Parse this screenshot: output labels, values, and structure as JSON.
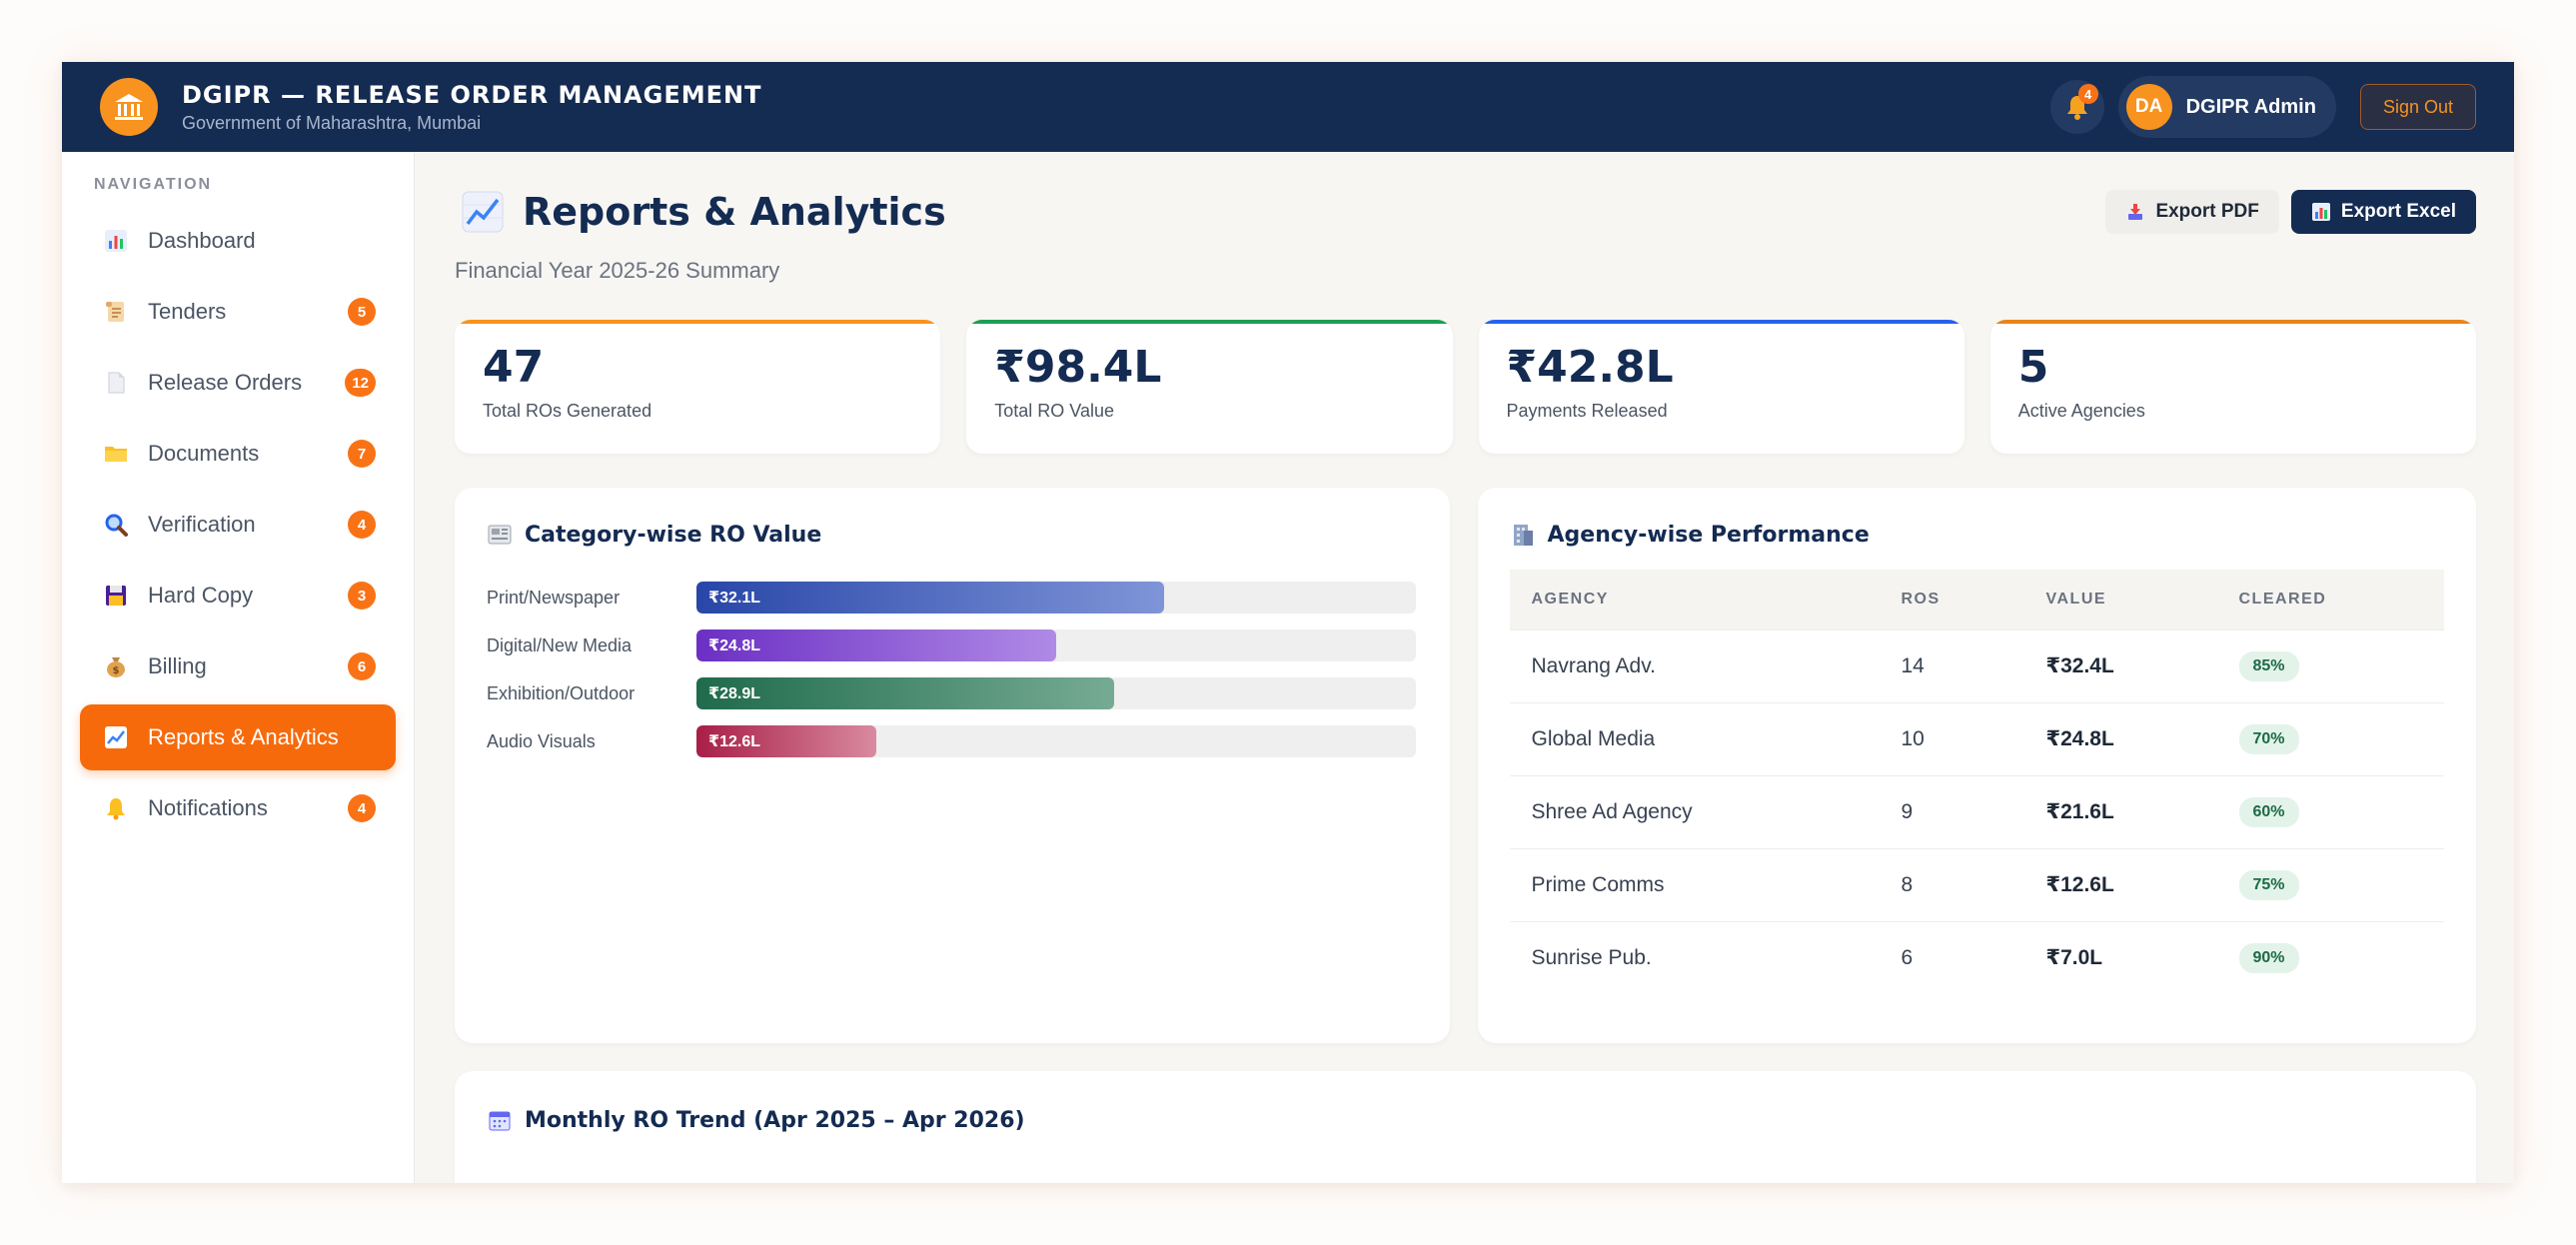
{
  "header": {
    "title": "DGIPR — RELEASE ORDER MANAGEMENT",
    "subtitle": "Government of Maharashtra, Mumbai",
    "notification_count": "4",
    "user_initials": "DA",
    "user_name": "DGIPR Admin",
    "signout_label": "Sign Out"
  },
  "sidebar": {
    "section_label": "NAVIGATION",
    "items": [
      {
        "label": "Dashboard",
        "icon": "bar-chart-icon",
        "badge": ""
      },
      {
        "label": "Tenders",
        "icon": "scroll-icon",
        "badge": "5"
      },
      {
        "label": "Release Orders",
        "icon": "document-icon",
        "badge": "12"
      },
      {
        "label": "Documents",
        "icon": "folder-icon",
        "badge": "7"
      },
      {
        "label": "Verification",
        "icon": "magnifier-icon",
        "badge": "4"
      },
      {
        "label": "Hard Copy",
        "icon": "floppy-icon",
        "badge": "3"
      },
      {
        "label": "Billing",
        "icon": "money-bag-icon",
        "badge": "6"
      },
      {
        "label": "Reports & Analytics",
        "icon": "chart-up-icon",
        "badge": "",
        "active": true
      },
      {
        "label": "Notifications",
        "icon": "bell-icon",
        "badge": "4"
      }
    ]
  },
  "page": {
    "title": "Reports & Analytics",
    "subtitle": "Financial Year 2025-26 Summary",
    "export_pdf": "Export PDF",
    "export_excel": "Export Excel"
  },
  "stats": [
    {
      "value": "47",
      "label": "Total ROs Generated",
      "accent": "#f97316"
    },
    {
      "value": "₹98.4L",
      "label": "Total RO Value",
      "accent": "#16a34a"
    },
    {
      "value": "₹42.8L",
      "label": "Payments Released",
      "accent": "#2563eb"
    },
    {
      "value": "5",
      "label": "Active Agencies",
      "accent": "#f97316"
    }
  ],
  "category_panel": {
    "title": "Category-wise RO Value",
    "rows": [
      {
        "name": "Print/Newspaper",
        "label": "₹32.1L",
        "fraction": 0.65
      },
      {
        "name": "Digital/New Media",
        "label": "₹24.8L",
        "fraction": 0.5
      },
      {
        "name": "Exhibition/Outdoor",
        "label": "₹28.9L",
        "fraction": 0.58
      },
      {
        "name": "Audio Visuals",
        "label": "₹12.6L",
        "fraction": 0.25
      }
    ]
  },
  "agency_panel": {
    "title": "Agency-wise Performance",
    "columns": [
      "AGENCY",
      "ROS",
      "VALUE",
      "CLEARED"
    ],
    "rows": [
      {
        "agency": "Navrang Adv.",
        "ros": "14",
        "value": "₹32.4L",
        "cleared": "85%"
      },
      {
        "agency": "Global Media",
        "ros": "10",
        "value": "₹24.8L",
        "cleared": "70%"
      },
      {
        "agency": "Shree Ad Agency",
        "ros": "9",
        "value": "₹21.6L",
        "cleared": "60%"
      },
      {
        "agency": "Prime Comms",
        "ros": "8",
        "value": "₹12.6L",
        "cleared": "75%"
      },
      {
        "agency": "Sunrise Pub.",
        "ros": "6",
        "value": "₹7.0L",
        "cleared": "90%"
      }
    ]
  },
  "trend_panel": {
    "title": "Monthly RO Trend (Apr 2025 – Apr 2026)"
  }
}
